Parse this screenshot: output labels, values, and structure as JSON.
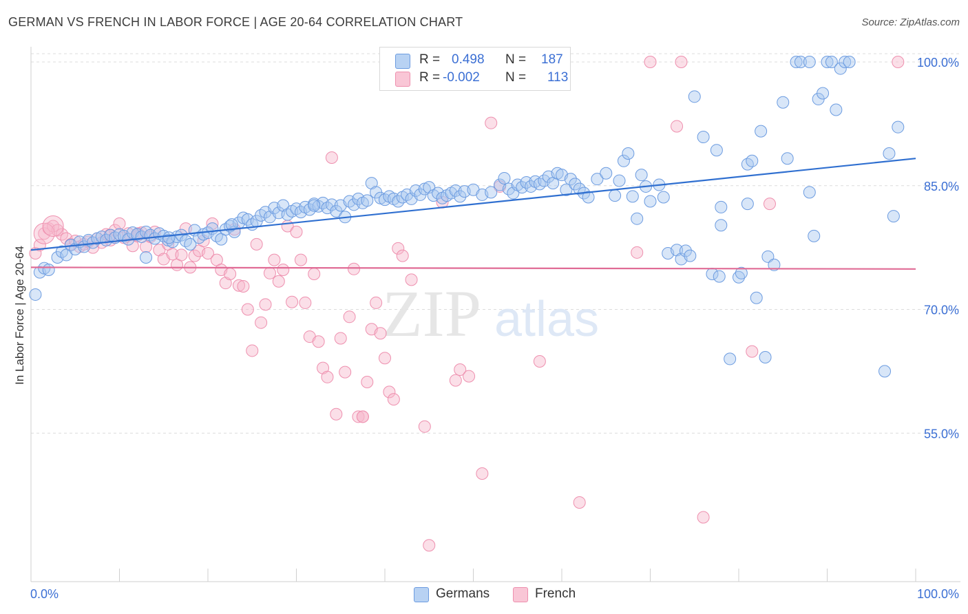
{
  "header": {
    "title": "GERMAN VS FRENCH IN LABOR FORCE | AGE 20-64 CORRELATION CHART",
    "source": "Source: ZipAtlas.com"
  },
  "legend": {
    "r_label": "R =",
    "n_label": "N =",
    "series": [
      {
        "name": "Germans",
        "r": "0.498",
        "n": "187"
      },
      {
        "name": "French",
        "r": "-0.002",
        "n": "113"
      }
    ]
  },
  "watermark": {
    "zip": "ZIP",
    "atlas": "atlas"
  },
  "colors": {
    "germans_fill": "#a9c8f0",
    "germans_stroke": "#6b9be0",
    "germans_line": "#2f6fd0",
    "french_fill": "#f7b8cc",
    "french_stroke": "#ee8fae",
    "french_line": "#e06b95",
    "tick_label": "#3b6fd4"
  },
  "chart_data": {
    "type": "scatter",
    "title": "GERMAN VS FRENCH IN LABOR FORCE | AGE 20-64 CORRELATION CHART",
    "xlabel": "",
    "ylabel": "In Labor Force | Age 20-64",
    "xlim": [
      0,
      100
    ],
    "ylim": [
      37,
      101
    ],
    "x_tick_labels": [
      "0.0%",
      "100.0%"
    ],
    "y_ticks": [
      55,
      70,
      85,
      100
    ],
    "y_tick_labels": [
      "55.0%",
      "70.0%",
      "85.0%",
      "100.0%"
    ],
    "grid": true,
    "legend_position": "bottom",
    "series": [
      {
        "name": "Germans",
        "r": 0.498,
        "n": 187,
        "trend": {
          "x": [
            0,
            100
          ],
          "y": [
            77.2,
            88.3
          ]
        },
        "points": [
          [
            0.5,
            71.8
          ],
          [
            1,
            74.5
          ],
          [
            1.5,
            75
          ],
          [
            2,
            74.8
          ],
          [
            3,
            76.3
          ],
          [
            3.5,
            77
          ],
          [
            4,
            76.6
          ],
          [
            4.5,
            77.8
          ],
          [
            5,
            77.3
          ],
          [
            5.5,
            78.2
          ],
          [
            6,
            77.6
          ],
          [
            6.5,
            78.4
          ],
          [
            7,
            78.1
          ],
          [
            7.5,
            78.6
          ],
          [
            8,
            78.8
          ],
          [
            8.5,
            78.4
          ],
          [
            9,
            79
          ],
          [
            9.5,
            78.7
          ],
          [
            10,
            79.1
          ],
          [
            10.5,
            78.9
          ],
          [
            11,
            78.5
          ],
          [
            11.5,
            79.3
          ],
          [
            12,
            79.1
          ],
          [
            12.5,
            78.8
          ],
          [
            13,
            79.4
          ],
          [
            13.5,
            79
          ],
          [
            14,
            78.6
          ],
          [
            14.5,
            79.2
          ],
          [
            15,
            78.9
          ],
          [
            15.5,
            78.4
          ],
          [
            16,
            78.2
          ],
          [
            16.5,
            78.8
          ],
          [
            17,
            79
          ],
          [
            17.5,
            78.3
          ],
          [
            18,
            77.9
          ],
          [
            18.5,
            79.6
          ],
          [
            19,
            78.7
          ],
          [
            19.5,
            79.1
          ],
          [
            20,
            79.3
          ],
          [
            20.5,
            79.8
          ],
          [
            21,
            78.9
          ],
          [
            21.5,
            78.5
          ],
          [
            22,
            79.7
          ],
          [
            22.5,
            80.1
          ],
          [
            23,
            79.4
          ],
          [
            23.5,
            80.5
          ],
          [
            24,
            81.1
          ],
          [
            24.5,
            80.9
          ],
          [
            25,
            80.3
          ],
          [
            25.5,
            80.7
          ],
          [
            26,
            81.4
          ],
          [
            26.5,
            81.8
          ],
          [
            27,
            81.2
          ],
          [
            27.5,
            82.3
          ],
          [
            28,
            81.7
          ],
          [
            28.5,
            82.6
          ],
          [
            29,
            81.5
          ],
          [
            29.5,
            81.9
          ],
          [
            30,
            82.2
          ],
          [
            30.5,
            81.8
          ],
          [
            31,
            82.4
          ],
          [
            31.5,
            82.1
          ],
          [
            32,
            82.8
          ],
          [
            32.5,
            82.5
          ],
          [
            33,
            82.9
          ],
          [
            33.5,
            82.3
          ],
          [
            34,
            82.7
          ],
          [
            34.5,
            81.9
          ],
          [
            35,
            82.6
          ],
          [
            35.5,
            81.2
          ],
          [
            36,
            83.1
          ],
          [
            36.5,
            82.7
          ],
          [
            37,
            83.4
          ],
          [
            37.5,
            82.9
          ],
          [
            38,
            83.2
          ],
          [
            38.5,
            85.3
          ],
          [
            39,
            84.2
          ],
          [
            39.5,
            83.5
          ],
          [
            40,
            83.3
          ],
          [
            40.5,
            83.7
          ],
          [
            41,
            83.4
          ],
          [
            41.5,
            83.1
          ],
          [
            42,
            83.6
          ],
          [
            42.5,
            83.9
          ],
          [
            43,
            83.4
          ],
          [
            43.5,
            84.4
          ],
          [
            44,
            83.9
          ],
          [
            44.5,
            84.6
          ],
          [
            45,
            84.8
          ],
          [
            45.5,
            83.8
          ],
          [
            46,
            84.1
          ],
          [
            46.5,
            83.5
          ],
          [
            47,
            83.8
          ],
          [
            47.5,
            84.1
          ],
          [
            48,
            84.4
          ],
          [
            48.5,
            83.7
          ],
          [
            49,
            84.3
          ],
          [
            50,
            84.5
          ],
          [
            51,
            83.9
          ],
          [
            52,
            84.2
          ],
          [
            53,
            85.1
          ],
          [
            53.5,
            85.9
          ],
          [
            54,
            84.6
          ],
          [
            54.5,
            84.1
          ],
          [
            55,
            85.1
          ],
          [
            55.5,
            84.8
          ],
          [
            56,
            85.4
          ],
          [
            56.5,
            84.9
          ],
          [
            57,
            85.5
          ],
          [
            57.5,
            85.2
          ],
          [
            58,
            85.6
          ],
          [
            58.5,
            86.1
          ],
          [
            59,
            85.3
          ],
          [
            59.5,
            86.5
          ],
          [
            60,
            86.3
          ],
          [
            60.5,
            84.5
          ],
          [
            61,
            85.8
          ],
          [
            61.5,
            85.2
          ],
          [
            62,
            84.6
          ],
          [
            62.5,
            84.1
          ],
          [
            63,
            83.6
          ],
          [
            64,
            85.8
          ],
          [
            65,
            86.5
          ],
          [
            66,
            83.8
          ],
          [
            66.5,
            85.6
          ],
          [
            67,
            88
          ],
          [
            67.5,
            88.9
          ],
          [
            68,
            83.7
          ],
          [
            68.5,
            81
          ],
          [
            69,
            86.3
          ],
          [
            69.5,
            84.9
          ],
          [
            70,
            83.1
          ],
          [
            71,
            85.1
          ],
          [
            71.5,
            83.6
          ],
          [
            72,
            76.8
          ],
          [
            73,
            77.2
          ],
          [
            73.5,
            76.1
          ],
          [
            74,
            77.1
          ],
          [
            74.5,
            76.5
          ],
          [
            75,
            95.8
          ],
          [
            76,
            90.9
          ],
          [
            77,
            74.3
          ],
          [
            77.5,
            89.3
          ],
          [
            77.8,
            74
          ],
          [
            78,
            82.4
          ],
          [
            78,
            80.2
          ],
          [
            79,
            64
          ],
          [
            80,
            73.9
          ],
          [
            80.3,
            74.4
          ],
          [
            81,
            82.8
          ],
          [
            81,
            87.6
          ],
          [
            81.5,
            88
          ],
          [
            82,
            71.4
          ],
          [
            82.5,
            91.6
          ],
          [
            83,
            64.2
          ],
          [
            83.3,
            76.4
          ],
          [
            84,
            75.4
          ],
          [
            85,
            95.1
          ],
          [
            85.5,
            88.3
          ],
          [
            86.5,
            100
          ],
          [
            87,
            100
          ],
          [
            88,
            84.2
          ],
          [
            88,
            100
          ],
          [
            88.5,
            78.9
          ],
          [
            89,
            95.5
          ],
          [
            89.5,
            96.2
          ],
          [
            90,
            100
          ],
          [
            90.5,
            100
          ],
          [
            91,
            94.2
          ],
          [
            91.5,
            99.2
          ],
          [
            92,
            100
          ],
          [
            92.5,
            100
          ],
          [
            96.5,
            62.5
          ],
          [
            97,
            88.9
          ],
          [
            97.5,
            81.3
          ],
          [
            98,
            92.1
          ],
          [
            13,
            76.3
          ],
          [
            15.6,
            78.7
          ],
          [
            22.7,
            80.3
          ],
          [
            32,
            82.6
          ]
        ]
      },
      {
        "name": "French",
        "r": -0.002,
        "n": 113,
        "trend": {
          "x": [
            0,
            100
          ],
          "y": [
            75.1,
            74.9
          ]
        },
        "points": [
          [
            0.5,
            76.8
          ],
          [
            1,
            77.8
          ],
          [
            1.5,
            79.2
          ],
          [
            2,
            79.8
          ],
          [
            2.5,
            80.1
          ],
          [
            3,
            79.6
          ],
          [
            3.5,
            79.1
          ],
          [
            4,
            78.6
          ],
          [
            4.5,
            77.9
          ],
          [
            5,
            78.3
          ],
          [
            5.5,
            77.6
          ],
          [
            6,
            77.9
          ],
          [
            6.5,
            78.2
          ],
          [
            7,
            77.5
          ],
          [
            7.5,
            78.6
          ],
          [
            8,
            78.1
          ],
          [
            8.5,
            79.1
          ],
          [
            9,
            78.4
          ],
          [
            9.5,
            79.6
          ],
          [
            10,
            80.4
          ],
          [
            10.5,
            78.7
          ],
          [
            11,
            79.2
          ],
          [
            11.5,
            77.7
          ],
          [
            12,
            78.9
          ],
          [
            12.5,
            79.3
          ],
          [
            13,
            77.6
          ],
          [
            13.5,
            78.8
          ],
          [
            14,
            79.4
          ],
          [
            14.5,
            77.2
          ],
          [
            15,
            76.1
          ],
          [
            15.5,
            77.9
          ],
          [
            16,
            76.7
          ],
          [
            16.5,
            75.4
          ],
          [
            17,
            76.6
          ],
          [
            17.5,
            79.8
          ],
          [
            18,
            75.1
          ],
          [
            18.5,
            76.5
          ],
          [
            19,
            77.1
          ],
          [
            19.5,
            78.3
          ],
          [
            20,
            76.8
          ],
          [
            20.5,
            80.4
          ],
          [
            21,
            76
          ],
          [
            21.5,
            74.8
          ],
          [
            22,
            73.2
          ],
          [
            22.5,
            74.3
          ],
          [
            23,
            79.7
          ],
          [
            23.5,
            72.9
          ],
          [
            24,
            72.8
          ],
          [
            24.5,
            70
          ],
          [
            25,
            65
          ],
          [
            25.5,
            77.9
          ],
          [
            26,
            68.4
          ],
          [
            26.5,
            70.6
          ],
          [
            27,
            74.4
          ],
          [
            27.5,
            76
          ],
          [
            28,
            73.4
          ],
          [
            28.5,
            74.8
          ],
          [
            29,
            80.1
          ],
          [
            29.5,
            70.9
          ],
          [
            30,
            79.4
          ],
          [
            30.5,
            76
          ],
          [
            31,
            70.8
          ],
          [
            31.5,
            66.7
          ],
          [
            32,
            74.3
          ],
          [
            32.5,
            66.1
          ],
          [
            33,
            62.9
          ],
          [
            33.5,
            61.8
          ],
          [
            34,
            88.4
          ],
          [
            34.5,
            57.3
          ],
          [
            35,
            66.5
          ],
          [
            35.5,
            62.4
          ],
          [
            36,
            69.1
          ],
          [
            36.5,
            74.9
          ],
          [
            37,
            57
          ],
          [
            37.5,
            57
          ],
          [
            38,
            61.2
          ],
          [
            38.5,
            67.6
          ],
          [
            39,
            70.8
          ],
          [
            39.5,
            67.1
          ],
          [
            40,
            64.1
          ],
          [
            40.5,
            60
          ],
          [
            41,
            59.1
          ],
          [
            41.5,
            77.4
          ],
          [
            42,
            76.5
          ],
          [
            43,
            73.6
          ],
          [
            44.5,
            55.8
          ],
          [
            45,
            41.4
          ],
          [
            46.5,
            83
          ],
          [
            48,
            61.4
          ],
          [
            48.5,
            62.7
          ],
          [
            49.5,
            61.9
          ],
          [
            51,
            50.1
          ],
          [
            52,
            92.6
          ],
          [
            53,
            84.9
          ],
          [
            57.5,
            63.7
          ],
          [
            60,
            100
          ],
          [
            62,
            46.6
          ],
          [
            68.5,
            76.9
          ],
          [
            70,
            100
          ],
          [
            73,
            92.2
          ],
          [
            73.5,
            100
          ],
          [
            76,
            44.8
          ],
          [
            81.5,
            64.9
          ],
          [
            83.5,
            82.8
          ],
          [
            98,
            100
          ],
          [
            37.5,
            57
          ],
          [
            8.9,
            79
          ],
          [
            12.1,
            79.2
          ]
        ]
      }
    ]
  }
}
